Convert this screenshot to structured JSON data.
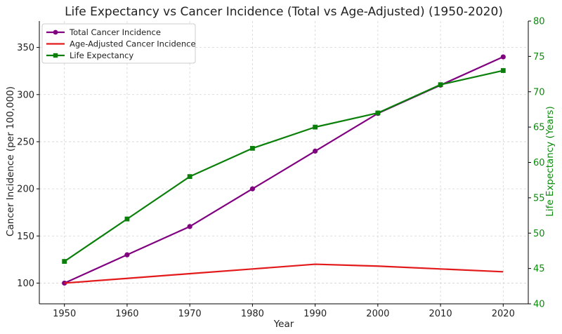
{
  "chart_data": {
    "type": "line",
    "title": "Life Expectancy vs Cancer Incidence (Total vs Age-Adjusted) (1950-2020)",
    "xlabel": "Year",
    "ylabel": "Cancer Incidence (per 100,000)",
    "y2label": "Life Expectancy (Years)",
    "x": [
      1950,
      1960,
      1970,
      1980,
      1990,
      2000,
      2010,
      2020
    ],
    "xlim": [
      1946,
      2024
    ],
    "ylim": [
      78,
      378
    ],
    "y2lim": [
      40,
      80
    ],
    "yticks": [
      100,
      150,
      200,
      250,
      300,
      350
    ],
    "y2ticks": [
      40,
      45,
      50,
      55,
      60,
      65,
      70,
      75,
      80
    ],
    "grid": true,
    "legend_position": "top-left",
    "series": [
      {
        "name": "Total Cancer Incidence",
        "axis": "left",
        "color": "#800080",
        "marker": "circle",
        "values": [
          100,
          130,
          160,
          200,
          240,
          280,
          310,
          340
        ]
      },
      {
        "name": "Age-Adjusted Cancer Incidence",
        "axis": "left",
        "color": "#e31a1c",
        "marker": "none",
        "values": [
          100,
          105,
          110,
          115,
          120,
          118,
          115,
          112
        ]
      },
      {
        "name": "Life Expectancy",
        "axis": "right",
        "color": "#0a7f0a",
        "marker": "square",
        "values": [
          46,
          52,
          58,
          62,
          65,
          67,
          71,
          73
        ]
      }
    ]
  }
}
